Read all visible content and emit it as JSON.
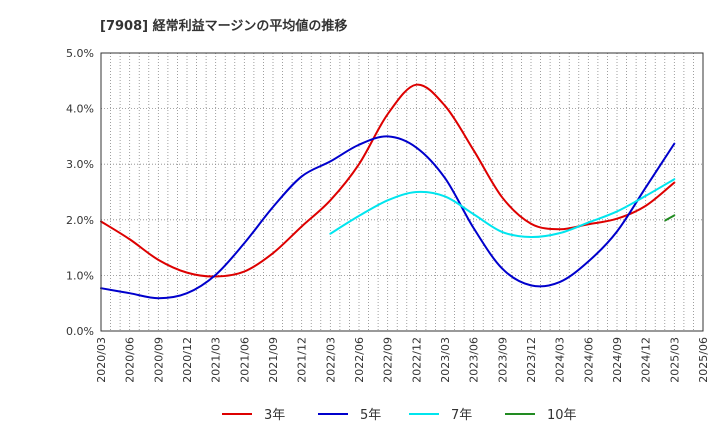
{
  "chart_data": {
    "type": "line",
    "title": "[7908]  経常利益マージンの平均値の推移",
    "xlabel": "",
    "ylabel": "",
    "x": [
      "2020/03",
      "2020/06",
      "2020/09",
      "2020/12",
      "2021/03",
      "2021/06",
      "2021/09",
      "2021/12",
      "2022/03",
      "2022/06",
      "2022/09",
      "2022/12",
      "2023/03",
      "2023/06",
      "2023/09",
      "2023/12",
      "2024/03",
      "2024/06",
      "2024/09",
      "2024/12",
      "2025/03",
      "2025/06"
    ],
    "ylim": [
      0,
      5
    ],
    "yticks": [
      "0.0%",
      "1.0%",
      "2.0%",
      "3.0%",
      "4.0%",
      "5.0%"
    ],
    "grid": true,
    "legend_position": "bottom",
    "series": [
      {
        "name": "3年",
        "color": "#dd0000",
        "values": [
          1.97,
          1.65,
          1.28,
          1.05,
          0.98,
          1.07,
          1.4,
          1.88,
          2.35,
          3.0,
          3.9,
          4.43,
          4.05,
          3.25,
          2.4,
          1.93,
          1.83,
          1.92,
          2.02,
          2.25,
          2.67,
          null
        ]
      },
      {
        "name": "5年",
        "color": "#0000cc",
        "values": [
          0.77,
          0.68,
          0.59,
          0.68,
          1.01,
          1.58,
          2.23,
          2.78,
          3.05,
          3.35,
          3.5,
          3.3,
          2.75,
          1.85,
          1.12,
          0.82,
          0.88,
          1.25,
          1.79,
          2.58,
          3.37,
          null
        ]
      },
      {
        "name": "7年",
        "color": "#00e5ee",
        "values": [
          null,
          null,
          null,
          null,
          null,
          null,
          null,
          null,
          1.75,
          2.07,
          2.35,
          2.5,
          2.42,
          2.1,
          1.78,
          1.69,
          1.76,
          1.95,
          2.15,
          2.43,
          2.73,
          null
        ]
      },
      {
        "name": "10年",
        "color": "#228b22",
        "values": [
          null,
          null,
          null,
          null,
          null,
          null,
          null,
          null,
          null,
          null,
          null,
          null,
          null,
          null,
          null,
          null,
          null,
          null,
          null,
          null,
          2.08,
          null
        ]
      }
    ]
  }
}
